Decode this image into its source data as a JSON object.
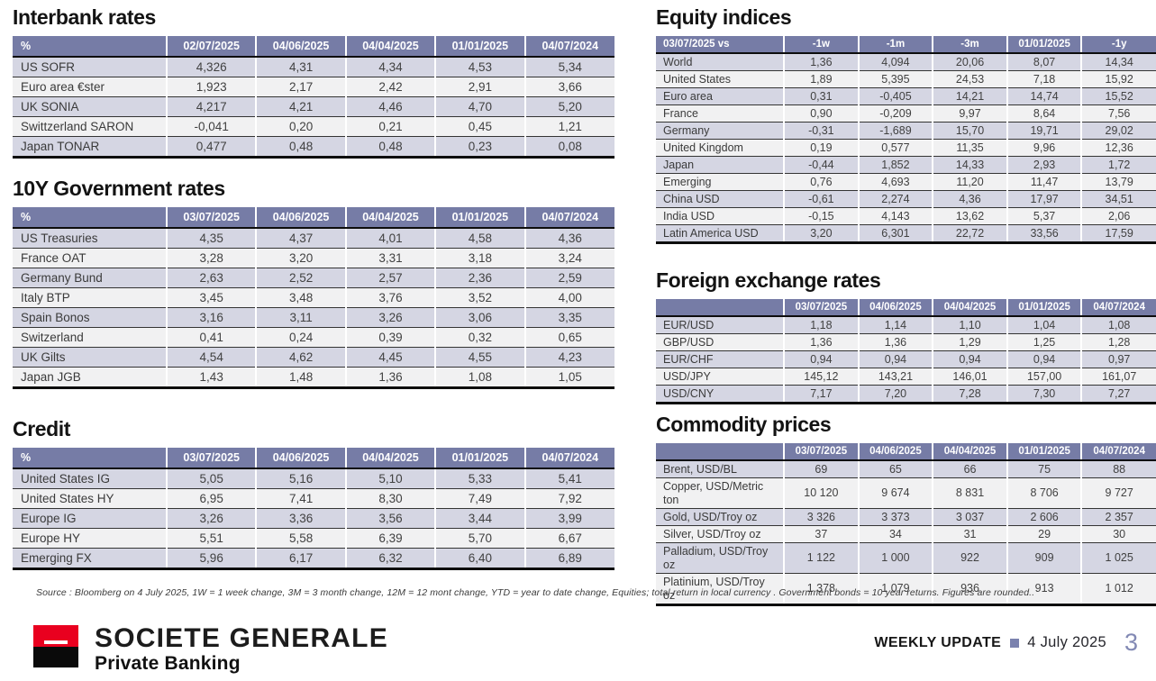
{
  "tables": [
    {
      "id": "interbank-rates",
      "title": "Interbank rates",
      "columns": [
        "%",
        "02/07/2025",
        "04/06/2025",
        "04/04/2025",
        "01/01/2025",
        "04/07/2024"
      ],
      "rows": [
        [
          "US SOFR",
          "4,326",
          "4,31",
          "4,34",
          "4,53",
          "5,34"
        ],
        [
          "Euro area €ster",
          "1,923",
          "2,17",
          "2,42",
          "2,91",
          "3,66"
        ],
        [
          "UK SONIA",
          "4,217",
          "4,21",
          "4,46",
          "4,70",
          "5,20"
        ],
        [
          "Swittzerland SARON",
          "-0,041",
          "0,20",
          "0,21",
          "0,45",
          "1,21"
        ],
        [
          "Japan TONAR",
          "0,477",
          "0,48",
          "0,48",
          "0,23",
          "0,08"
        ]
      ]
    },
    {
      "id": "gov-10y-rates",
      "title": "10Y Government rates",
      "columns": [
        "%",
        "03/07/2025",
        "04/06/2025",
        "04/04/2025",
        "01/01/2025",
        "04/07/2024"
      ],
      "rows": [
        [
          "US Treasuries",
          "4,35",
          "4,37",
          "4,01",
          "4,58",
          "4,36"
        ],
        [
          "France OAT",
          "3,28",
          "3,20",
          "3,31",
          "3,18",
          "3,24"
        ],
        [
          "Germany Bund",
          "2,63",
          "2,52",
          "2,57",
          "2,36",
          "2,59"
        ],
        [
          "Italy BTP",
          "3,45",
          "3,48",
          "3,76",
          "3,52",
          "4,00"
        ],
        [
          "Spain Bonos",
          "3,16",
          "3,11",
          "3,26",
          "3,06",
          "3,35"
        ],
        [
          "Switzerland",
          "0,41",
          "0,24",
          "0,39",
          "0,32",
          "0,65"
        ],
        [
          "UK Gilts",
          "4,54",
          "4,62",
          "4,45",
          "4,55",
          "4,23"
        ],
        [
          "Japan JGB",
          "1,43",
          "1,48",
          "1,36",
          "1,08",
          "1,05"
        ]
      ]
    },
    {
      "id": "credit",
      "title": "Credit",
      "columns": [
        "%",
        "03/07/2025",
        "04/06/2025",
        "04/04/2025",
        "01/01/2025",
        "04/07/2024"
      ],
      "rows": [
        [
          "United States IG",
          "5,05",
          "5,16",
          "5,10",
          "5,33",
          "5,41"
        ],
        [
          "United States HY",
          "6,95",
          "7,41",
          "8,30",
          "7,49",
          "7,92"
        ],
        [
          "Europe IG",
          "3,26",
          "3,36",
          "3,56",
          "3,44",
          "3,99"
        ],
        [
          "Europe HY",
          "5,51",
          "5,58",
          "6,39",
          "5,70",
          "6,67"
        ],
        [
          "Emerging FX",
          "5,96",
          "6,17",
          "6,32",
          "6,40",
          "6,89"
        ]
      ]
    },
    {
      "id": "equity-indices",
      "title": "Equity indices",
      "columns": [
        "03/07/2025 vs",
        "-1w",
        "-1m",
        "-3m",
        "01/01/2025",
        "-1y"
      ],
      "rows": [
        [
          "World",
          "1,36",
          "4,094",
          "20,06",
          "8,07",
          "14,34"
        ],
        [
          "United States",
          "1,89",
          "5,395",
          "24,53",
          "7,18",
          "15,92"
        ],
        [
          "Euro area",
          "0,31",
          "-0,405",
          "14,21",
          "14,74",
          "15,52"
        ],
        [
          "France",
          "0,90",
          "-0,209",
          "9,97",
          "8,64",
          "7,56"
        ],
        [
          "Germany",
          "-0,31",
          "-1,689",
          "15,70",
          "19,71",
          "29,02"
        ],
        [
          "United Kingdom",
          "0,19",
          "0,577",
          "11,35",
          "9,96",
          "12,36"
        ],
        [
          "Japan",
          "-0,44",
          "1,852",
          "14,33",
          "2,93",
          "1,72"
        ],
        [
          "Emerging",
          "0,76",
          "4,693",
          "11,20",
          "11,47",
          "13,79"
        ],
        [
          "China USD",
          "-0,61",
          "2,274",
          "4,36",
          "17,97",
          "34,51"
        ],
        [
          "India USD",
          "-0,15",
          "4,143",
          "13,62",
          "5,37",
          "2,06"
        ],
        [
          "Latin America USD",
          "3,20",
          "6,301",
          "22,72",
          "33,56",
          "17,59"
        ]
      ]
    },
    {
      "id": "foreign-exchange-rates",
      "title": "Foreign exchange rates",
      "columns": [
        "",
        "03/07/2025",
        "04/06/2025",
        "04/04/2025",
        "01/01/2025",
        "04/07/2024"
      ],
      "rows": [
        [
          "EUR/USD",
          "1,18",
          "1,14",
          "1,10",
          "1,04",
          "1,08"
        ],
        [
          "GBP/USD",
          "1,36",
          "1,36",
          "1,29",
          "1,25",
          "1,28"
        ],
        [
          "EUR/CHF",
          "0,94",
          "0,94",
          "0,94",
          "0,94",
          "0,97"
        ],
        [
          "USD/JPY",
          "145,12",
          "143,21",
          "146,01",
          "157,00",
          "161,07"
        ],
        [
          "USD/CNY",
          "7,17",
          "7,20",
          "7,28",
          "7,30",
          "7,27"
        ]
      ]
    },
    {
      "id": "commodity-prices",
      "title": "Commodity prices",
      "columns": [
        "",
        "03/07/2025",
        "04/06/2025",
        "04/04/2025",
        "01/01/2025",
        "04/07/2024"
      ],
      "rows": [
        [
          "Brent, USD/BL",
          "69",
          "65",
          "66",
          "75",
          "88"
        ],
        [
          "Copper, USD/Metric ton",
          "10 120",
          "9 674",
          "8 831",
          "8 706",
          "9 727"
        ],
        [
          "Gold, USD/Troy oz",
          "3 326",
          "3 373",
          "3 037",
          "2 606",
          "2 357"
        ],
        [
          "Silver, USD/Troy oz",
          "37",
          "34",
          "31",
          "29",
          "30"
        ],
        [
          "Palladium, USD/Troy oz",
          "1 122",
          "1 000",
          "922",
          "909",
          "1 025"
        ],
        [
          "Platinium, USD/Troy oz",
          "1 378",
          "1 079",
          "936",
          "913",
          "1 012"
        ]
      ]
    }
  ],
  "source_note": "Source : Bloomberg on  4 July 2025, 1W = 1 week change, 3M = 3 month change, 12M = 12 mont change, YTD = year to date change, Equities; total return in local currency . Government bonds = 10 year returns. Figures are rounded..",
  "brand": {
    "name": "SOCIETE GENERALE",
    "division": "Private Banking"
  },
  "footer": {
    "label": "WEEKLY UPDATE",
    "date": "4 July 2025",
    "page_number": "3"
  },
  "colors": {
    "table_header_bg": "#767CA6",
    "row_shaded": "#D5D6E3",
    "row_plain": "#F1F1F2",
    "accent": "#7B82AE",
    "logo_red": "#E9001F"
  }
}
